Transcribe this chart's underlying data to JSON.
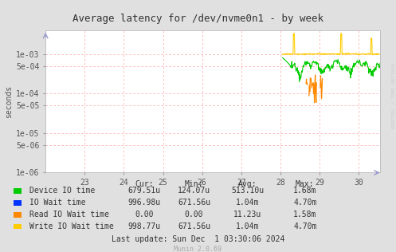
{
  "title": "Average latency for /dev/nvme0n1 - by week",
  "ylabel": "seconds",
  "bg_color": "#e0e0e0",
  "plot_bg_color": "#ffffff",
  "grid_color": "#ffb0b0",
  "rrdtool_text": "RRDTOOL / TOBI OETIKER",
  "legend_items": [
    {
      "label": "Device IO time",
      "color": "#00cc00"
    },
    {
      "label": "IO Wait time",
      "color": "#0033ff"
    },
    {
      "label": "Read IO Wait time",
      "color": "#ff8800"
    },
    {
      "label": "Write IO Wait time",
      "color": "#ffcc00"
    }
  ],
  "table_headers": [
    "Cur:",
    "Min:",
    "Avg:",
    "Max:"
  ],
  "table_data": [
    [
      "679.51u",
      "124.07u",
      "513.10u",
      "1.68m"
    ],
    [
      "996.98u",
      "671.56u",
      "1.04m",
      "4.70m"
    ],
    [
      "0.00",
      "0.00",
      "11.23u",
      "1.58m"
    ],
    [
      "998.77u",
      "671.56u",
      "1.04m",
      "4.70m"
    ]
  ],
  "last_update": "Last update: Sun Dec  1 03:30:06 2024",
  "munin_version": "Munin 2.0.69",
  "xlim": [
    22.0,
    30.55
  ],
  "ylim": [
    1e-06,
    0.004
  ],
  "yticks": [
    1e-06,
    5e-06,
    1e-05,
    5e-05,
    0.0001,
    0.0005,
    0.001
  ],
  "ytick_labels": [
    "1e-06",
    "5e-06",
    "1e-05",
    "5e-05",
    "1e-04",
    "5e-04",
    "1e-03"
  ],
  "xticks": [
    23,
    24,
    25,
    26,
    27,
    28,
    29,
    30
  ],
  "xtick_labels": [
    "23",
    "24",
    "25",
    "26",
    "27",
    "28",
    "29",
    "30"
  ],
  "vgrid_x": [
    22,
    23,
    24,
    25,
    26,
    27,
    28,
    29,
    30
  ],
  "hgrid_y": [
    1e-06,
    5e-06,
    1e-05,
    5e-05,
    0.0001,
    0.0005,
    0.001
  ]
}
